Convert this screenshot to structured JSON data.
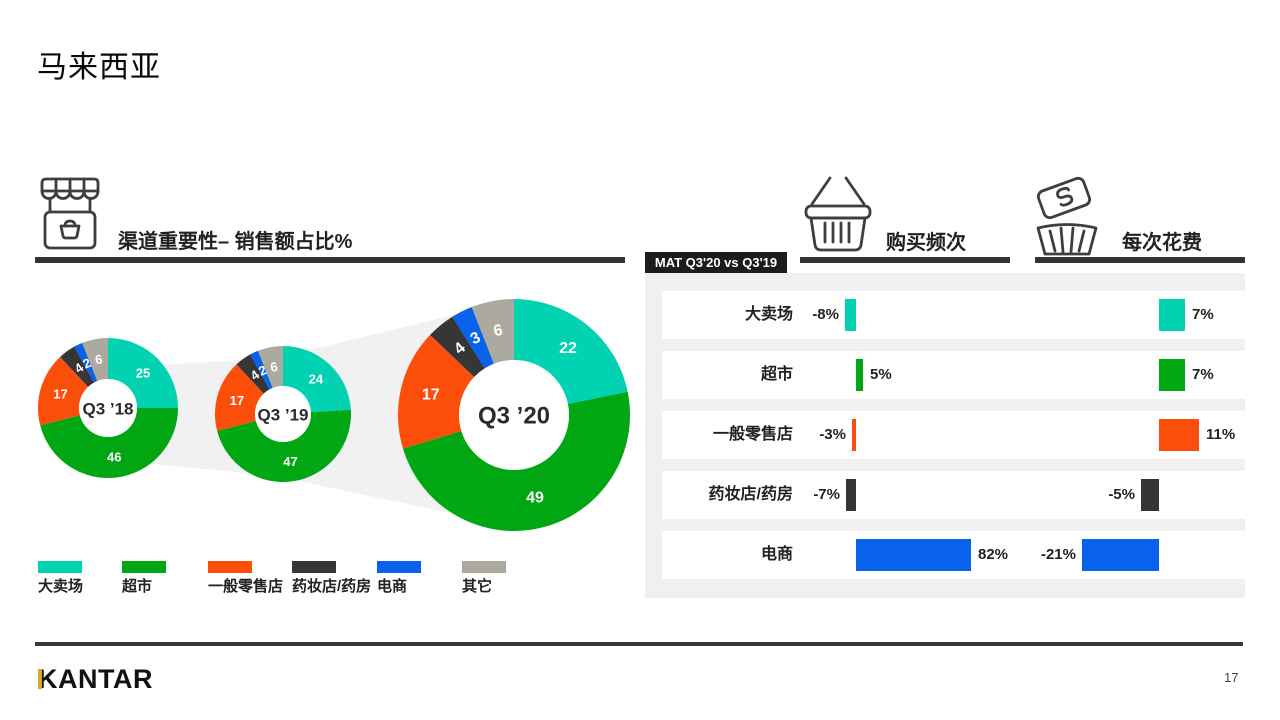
{
  "slide": {
    "title": "马来西亚",
    "logo_text": "KANTAR",
    "page_number": "17"
  },
  "left_section": {
    "heading": "渠道重要性– 销售额占比%"
  },
  "right_section": {
    "badge": "MAT Q3'20 vs Q3'19",
    "freq_heading": "购买频次",
    "spend_heading": "每次花费"
  },
  "chart_data": [
    {
      "type": "pie",
      "donut": true,
      "title": "渠道重要性– 销售额占比%",
      "categories": [
        "大卖场",
        "超市",
        "一般零售店",
        "药妆店/药房",
        "电商",
        "其它"
      ],
      "colors": [
        "#00D2B2",
        "#00A713",
        "#FB4E0B",
        "#363636",
        "#0862EB",
        "#ACA99F"
      ],
      "series": [
        {
          "name": "Q3 ’18",
          "values": [
            25,
            46,
            17,
            4,
            2,
            6
          ]
        },
        {
          "name": "Q3 ’19",
          "values": [
            24,
            47,
            17,
            4,
            2,
            6
          ]
        },
        {
          "name": "Q3 ’20",
          "values": [
            22,
            49,
            17,
            4,
            3,
            6
          ]
        }
      ],
      "legend_position": "bottom"
    },
    {
      "type": "bar",
      "title": "MAT Q3'20 vs Q3'19",
      "categories": [
        "大卖场",
        "超市",
        "一般零售店",
        "药妆店/药房",
        "电商"
      ],
      "series": [
        {
          "name": "购买频次",
          "values": [
            -8,
            5,
            -3,
            -7,
            82
          ],
          "labels": [
            "-8%",
            "5%",
            "-3%",
            "-7%",
            "82%"
          ]
        },
        {
          "name": "每次花费",
          "values": [
            7,
            7,
            11,
            -5,
            -21
          ],
          "labels": [
            "7%",
            "7%",
            "11%",
            "-5%",
            "-21%"
          ]
        }
      ],
      "unit": "%"
    }
  ]
}
